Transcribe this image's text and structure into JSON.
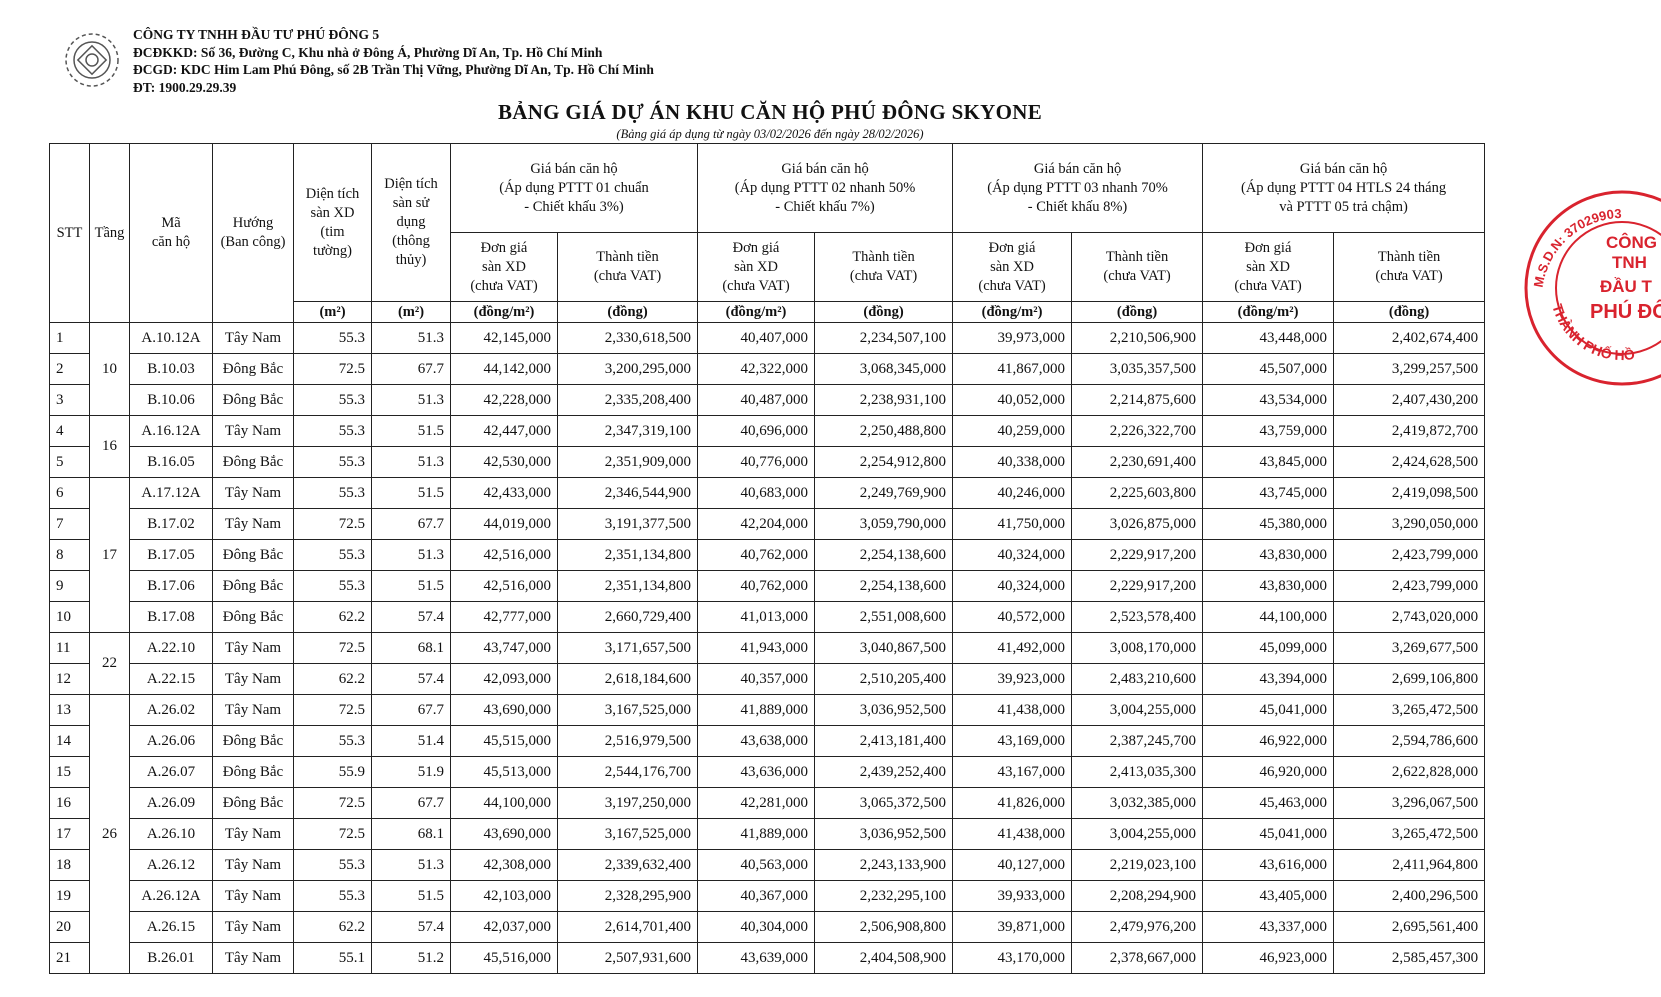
{
  "header": {
    "company": "CÔNG TY TNHH ĐẦU TƯ PHÚ ĐÔNG 5",
    "lines": [
      "ĐCĐKKD: Số 36, Đường C, Khu nhà ở Đông Á, Phường Dĩ An, Tp. Hồ Chí Minh",
      "ĐCGD: KDC Him Lam Phú Đông, số 2B Trần Thị Vững, Phường Dĩ An, Tp. Hồ Chí Minh",
      "ĐT: 1900.29.29.39"
    ]
  },
  "title": "BẢNG GIÁ DỰ ÁN KHU CĂN HỘ PHÚ ĐÔNG SKYONE",
  "subtitle": "(Bảng giá áp dụng từ ngày 03/02/2026 đến ngày 28/02/2026)",
  "table": {
    "head": {
      "stt": "STT",
      "floor": "Tầng",
      "code": [
        "Mã",
        "căn hộ"
      ],
      "direction": [
        "Hướng",
        "(Ban công)"
      ],
      "area_built": [
        "Diện tích",
        "sàn XD",
        "(tim",
        "tường)"
      ],
      "area_use": [
        "Diện tích",
        "sàn sử",
        "dụng",
        "(thông",
        "thủy)"
      ],
      "price_groups": [
        {
          "lines": [
            "Giá bán căn hộ",
            "(Áp dụng PTTT 01 chuẩn",
            "- Chiết khấu 3%)"
          ]
        },
        {
          "lines": [
            "Giá bán căn hộ",
            "(Áp dụng PTTT 02 nhanh 50%",
            "- Chiết khấu 7%)"
          ]
        },
        {
          "lines": [
            "Giá bán căn hộ",
            "(Áp dụng PTTT 03 nhanh 70%",
            "- Chiết khấu 8%)"
          ]
        },
        {
          "lines": [
            "Giá bán căn hộ",
            "(Áp dụng PTTT 04 HTLS 24 tháng",
            "và PTTT 05 trả chậm)"
          ]
        }
      ],
      "unit_price": [
        "Đơn giá",
        "sàn XD",
        "(chưa VAT)"
      ],
      "total": [
        "Thành tiền",
        "(chưa VAT)"
      ],
      "units": {
        "area": "(m²)",
        "unit_price": "(đồng/m²)",
        "total": "(đồng)"
      }
    },
    "floor_groups": [
      {
        "floor": "10",
        "rows": [
          [
            "1",
            "A.10.12A",
            "Tây Nam",
            "55.3",
            "51.3",
            "42,145,000",
            "2,330,618,500",
            "40,407,000",
            "2,234,507,100",
            "39,973,000",
            "2,210,506,900",
            "43,448,000",
            "2,402,674,400"
          ],
          [
            "2",
            "B.10.03",
            "Đông Bắc",
            "72.5",
            "67.7",
            "44,142,000",
            "3,200,295,000",
            "42,322,000",
            "3,068,345,000",
            "41,867,000",
            "3,035,357,500",
            "45,507,000",
            "3,299,257,500"
          ],
          [
            "3",
            "B.10.06",
            "Đông Bắc",
            "55.3",
            "51.3",
            "42,228,000",
            "2,335,208,400",
            "40,487,000",
            "2,238,931,100",
            "40,052,000",
            "2,214,875,600",
            "43,534,000",
            "2,407,430,200"
          ]
        ]
      },
      {
        "floor": "16",
        "rows": [
          [
            "4",
            "A.16.12A",
            "Tây Nam",
            "55.3",
            "51.5",
            "42,447,000",
            "2,347,319,100",
            "40,696,000",
            "2,250,488,800",
            "40,259,000",
            "2,226,322,700",
            "43,759,000",
            "2,419,872,700"
          ],
          [
            "5",
            "B.16.05",
            "Đông Bắc",
            "55.3",
            "51.3",
            "42,530,000",
            "2,351,909,000",
            "40,776,000",
            "2,254,912,800",
            "40,338,000",
            "2,230,691,400",
            "43,845,000",
            "2,424,628,500"
          ]
        ]
      },
      {
        "floor": "17",
        "rows": [
          [
            "6",
            "A.17.12A",
            "Tây Nam",
            "55.3",
            "51.5",
            "42,433,000",
            "2,346,544,900",
            "40,683,000",
            "2,249,769,900",
            "40,246,000",
            "2,225,603,800",
            "43,745,000",
            "2,419,098,500"
          ],
          [
            "7",
            "B.17.02",
            "Tây Nam",
            "72.5",
            "67.7",
            "44,019,000",
            "3,191,377,500",
            "42,204,000",
            "3,059,790,000",
            "41,750,000",
            "3,026,875,000",
            "45,380,000",
            "3,290,050,000"
          ],
          [
            "8",
            "B.17.05",
            "Đông Bắc",
            "55.3",
            "51.3",
            "42,516,000",
            "2,351,134,800",
            "40,762,000",
            "2,254,138,600",
            "40,324,000",
            "2,229,917,200",
            "43,830,000",
            "2,423,799,000"
          ],
          [
            "9",
            "B.17.06",
            "Đông Bắc",
            "55.3",
            "51.5",
            "42,516,000",
            "2,351,134,800",
            "40,762,000",
            "2,254,138,600",
            "40,324,000",
            "2,229,917,200",
            "43,830,000",
            "2,423,799,000"
          ],
          [
            "10",
            "B.17.08",
            "Đông Bắc",
            "62.2",
            "57.4",
            "42,777,000",
            "2,660,729,400",
            "41,013,000",
            "2,551,008,600",
            "40,572,000",
            "2,523,578,400",
            "44,100,000",
            "2,743,020,000"
          ]
        ]
      },
      {
        "floor": "22",
        "rows": [
          [
            "11",
            "A.22.10",
            "Tây Nam",
            "72.5",
            "68.1",
            "43,747,000",
            "3,171,657,500",
            "41,943,000",
            "3,040,867,500",
            "41,492,000",
            "3,008,170,000",
            "45,099,000",
            "3,269,677,500"
          ],
          [
            "12",
            "A.22.15",
            "Tây Nam",
            "62.2",
            "57.4",
            "42,093,000",
            "2,618,184,600",
            "40,357,000",
            "2,510,205,400",
            "39,923,000",
            "2,483,210,600",
            "43,394,000",
            "2,699,106,800"
          ]
        ]
      },
      {
        "floor": "26",
        "rows": [
          [
            "13",
            "A.26.02",
            "Tây Nam",
            "72.5",
            "67.7",
            "43,690,000",
            "3,167,525,000",
            "41,889,000",
            "3,036,952,500",
            "41,438,000",
            "3,004,255,000",
            "45,041,000",
            "3,265,472,500"
          ],
          [
            "14",
            "A.26.06",
            "Đông Bắc",
            "55.3",
            "51.4",
            "45,515,000",
            "2,516,979,500",
            "43,638,000",
            "2,413,181,400",
            "43,169,000",
            "2,387,245,700",
            "46,922,000",
            "2,594,786,600"
          ],
          [
            "15",
            "A.26.07",
            "Đông Bắc",
            "55.9",
            "51.9",
            "45,513,000",
            "2,544,176,700",
            "43,636,000",
            "2,439,252,400",
            "43,167,000",
            "2,413,035,300",
            "46,920,000",
            "2,622,828,000"
          ],
          [
            "16",
            "A.26.09",
            "Đông Bắc",
            "72.5",
            "67.7",
            "44,100,000",
            "3,197,250,000",
            "42,281,000",
            "3,065,372,500",
            "41,826,000",
            "3,032,385,000",
            "45,463,000",
            "3,296,067,500"
          ],
          [
            "17",
            "A.26.10",
            "Tây Nam",
            "72.5",
            "68.1",
            "43,690,000",
            "3,167,525,000",
            "41,889,000",
            "3,036,952,500",
            "41,438,000",
            "3,004,255,000",
            "45,041,000",
            "3,265,472,500"
          ],
          [
            "18",
            "A.26.12",
            "Tây Nam",
            "55.3",
            "51.3",
            "42,308,000",
            "2,339,632,400",
            "40,563,000",
            "2,243,133,900",
            "40,127,000",
            "2,219,023,100",
            "43,616,000",
            "2,411,964,800"
          ],
          [
            "19",
            "A.26.12A",
            "Tây Nam",
            "55.3",
            "51.5",
            "42,103,000",
            "2,328,295,900",
            "40,367,000",
            "2,232,295,100",
            "39,933,000",
            "2,208,294,900",
            "43,405,000",
            "2,400,296,500"
          ],
          [
            "20",
            "A.26.15",
            "Tây Nam",
            "62.2",
            "57.4",
            "42,037,000",
            "2,614,701,400",
            "40,304,000",
            "2,506,908,800",
            "39,871,000",
            "2,479,976,200",
            "43,337,000",
            "2,695,561,400"
          ],
          [
            "21",
            "B.26.01",
            "Tây Nam",
            "55.1",
            "51.2",
            "45,516,000",
            "2,507,931,600",
            "43,639,000",
            "2,404,508,900",
            "43,170,000",
            "2,378,667,000",
            "46,923,000",
            "2,585,457,300"
          ]
        ]
      }
    ]
  },
  "stamp": {
    "code": "M.S.D.N: 37029903",
    "lines": [
      "CÔNG",
      "TNH",
      "ĐẦU T",
      "PHÚ ĐÔ"
    ],
    "city": "THÀNH PHỐ HỒ"
  }
}
